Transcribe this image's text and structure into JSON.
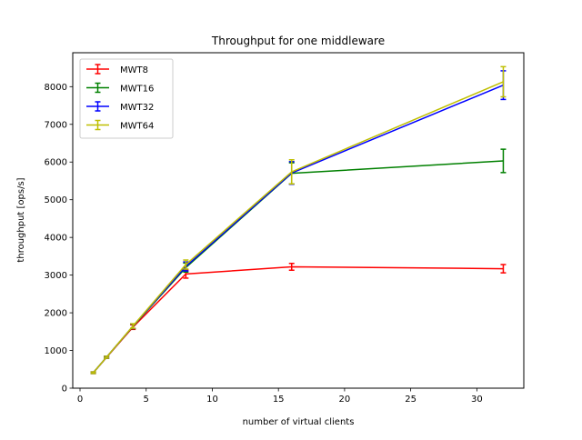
{
  "chart_data": {
    "type": "line",
    "title": "Throughput for one middleware",
    "xlabel": "number of virtual clients",
    "ylabel": "throughput [ops/s]",
    "xlim": [
      -0.55,
      33.55
    ],
    "ylim": [
      0,
      8900
    ],
    "xticks": [
      0,
      5,
      10,
      15,
      20,
      25,
      30
    ],
    "yticks": [
      0,
      1000,
      2000,
      3000,
      4000,
      5000,
      6000,
      7000,
      8000
    ],
    "grid": false,
    "legend": "top-left",
    "error_bars": true,
    "x": [
      1,
      2,
      4,
      8,
      16,
      32
    ],
    "series": [
      {
        "name": "MWT8",
        "color": "#ff0000",
        "values": [
          410,
          815,
          1620,
          3030,
          3220,
          3170
        ],
        "errors": [
          20,
          25,
          60,
          110,
          90,
          110
        ]
      },
      {
        "name": "MWT16",
        "color": "#008000",
        "values": [
          410,
          820,
          1640,
          3200,
          5700,
          6030
        ],
        "errors": [
          20,
          25,
          60,
          120,
          280,
          310
        ]
      },
      {
        "name": "MWT32",
        "color": "#0000ff",
        "values": [
          410,
          820,
          1645,
          3230,
          5710,
          8040
        ],
        "errors": [
          20,
          25,
          60,
          120,
          300,
          380
        ]
      },
      {
        "name": "MWT64",
        "color": "#bfbf00",
        "values": [
          410,
          820,
          1650,
          3280,
          5740,
          8130
        ],
        "errors": [
          20,
          25,
          60,
          120,
          320,
          400
        ]
      }
    ]
  }
}
